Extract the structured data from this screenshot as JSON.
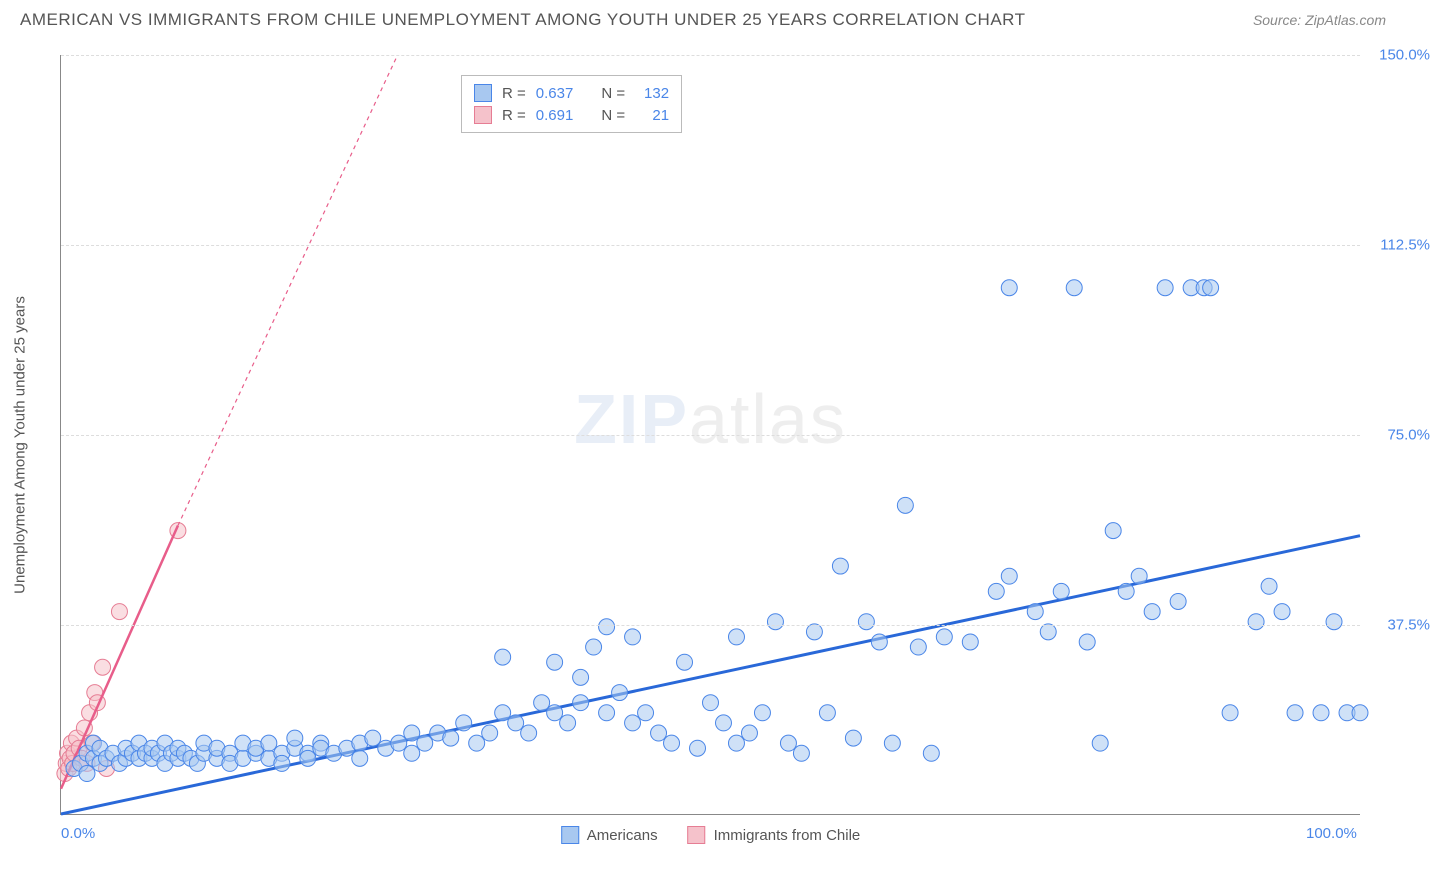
{
  "title": "AMERICAN VS IMMIGRANTS FROM CHILE UNEMPLOYMENT AMONG YOUTH UNDER 25 YEARS CORRELATION CHART",
  "source": "Source: ZipAtlas.com",
  "watermark_zip": "ZIP",
  "watermark_atlas": "atlas",
  "y_axis_label": "Unemployment Among Youth under 25 years",
  "chart": {
    "type": "scatter",
    "background_color": "#ffffff",
    "grid_color": "#dddddd",
    "axis_color": "#888888",
    "label_color": "#4a86e8",
    "label_fontsize": 15,
    "xlim": [
      0,
      100
    ],
    "ylim": [
      0,
      150
    ],
    "x_ticks": [
      {
        "val": 0,
        "label": "0.0%"
      },
      {
        "val": 100,
        "label": "100.0%"
      }
    ],
    "y_ticks": [
      {
        "val": 37.5,
        "label": "37.5%"
      },
      {
        "val": 75.0,
        "label": "75.0%"
      },
      {
        "val": 112.5,
        "label": "112.5%"
      },
      {
        "val": 150.0,
        "label": "150.0%"
      }
    ],
    "marker_radius": 8,
    "marker_opacity": 0.55,
    "series": [
      {
        "name": "Americans",
        "fill_color": "#a8c8f0",
        "stroke_color": "#4a86e8",
        "line_color": "#2968d8",
        "line_width": 3,
        "line_dash": "none",
        "R": "0.637",
        "N": "132",
        "regression": {
          "x1": 0,
          "y1": 0,
          "x2": 100,
          "y2": 55,
          "extend_x2": 100,
          "extend_y2": 55
        },
        "points": [
          [
            1,
            9
          ],
          [
            1.5,
            10
          ],
          [
            2,
            12
          ],
          [
            2,
            8
          ],
          [
            2.5,
            11
          ],
          [
            2.5,
            14
          ],
          [
            3,
            13
          ],
          [
            3,
            10
          ],
          [
            3.5,
            11
          ],
          [
            4,
            12
          ],
          [
            4.5,
            10
          ],
          [
            5,
            11
          ],
          [
            5,
            13
          ],
          [
            5.5,
            12
          ],
          [
            6,
            11
          ],
          [
            6,
            14
          ],
          [
            6.5,
            12
          ],
          [
            7,
            11
          ],
          [
            7,
            13
          ],
          [
            7.5,
            12
          ],
          [
            8,
            10
          ],
          [
            8,
            14
          ],
          [
            8.5,
            12
          ],
          [
            9,
            11
          ],
          [
            9,
            13
          ],
          [
            9.5,
            12
          ],
          [
            10,
            11
          ],
          [
            10.5,
            10
          ],
          [
            11,
            12
          ],
          [
            11,
            14
          ],
          [
            12,
            11
          ],
          [
            12,
            13
          ],
          [
            13,
            12
          ],
          [
            13,
            10
          ],
          [
            14,
            11
          ],
          [
            14,
            14
          ],
          [
            15,
            12
          ],
          [
            15,
            13
          ],
          [
            16,
            11
          ],
          [
            16,
            14
          ],
          [
            17,
            12
          ],
          [
            17,
            10
          ],
          [
            18,
            13
          ],
          [
            18,
            15
          ],
          [
            19,
            12
          ],
          [
            19,
            11
          ],
          [
            20,
            14
          ],
          [
            20,
            13
          ],
          [
            21,
            12
          ],
          [
            22,
            13
          ],
          [
            23,
            14
          ],
          [
            23,
            11
          ],
          [
            24,
            15
          ],
          [
            25,
            13
          ],
          [
            26,
            14
          ],
          [
            27,
            16
          ],
          [
            27,
            12
          ],
          [
            28,
            14
          ],
          [
            29,
            16
          ],
          [
            30,
            15
          ],
          [
            31,
            18
          ],
          [
            32,
            14
          ],
          [
            33,
            16
          ],
          [
            34,
            20
          ],
          [
            34,
            31
          ],
          [
            35,
            18
          ],
          [
            36,
            16
          ],
          [
            37,
            22
          ],
          [
            38,
            30
          ],
          [
            38,
            20
          ],
          [
            39,
            18
          ],
          [
            40,
            22
          ],
          [
            40,
            27
          ],
          [
            41,
            33
          ],
          [
            42,
            20
          ],
          [
            42,
            37
          ],
          [
            43,
            24
          ],
          [
            44,
            18
          ],
          [
            44,
            35
          ],
          [
            45,
            20
          ],
          [
            46,
            16
          ],
          [
            47,
            14
          ],
          [
            48,
            30
          ],
          [
            49,
            13
          ],
          [
            50,
            22
          ],
          [
            51,
            18
          ],
          [
            52,
            35
          ],
          [
            52,
            14
          ],
          [
            53,
            16
          ],
          [
            54,
            20
          ],
          [
            55,
            38
          ],
          [
            56,
            14
          ],
          [
            57,
            12
          ],
          [
            58,
            36
          ],
          [
            59,
            20
          ],
          [
            60,
            49
          ],
          [
            61,
            15
          ],
          [
            62,
            38
          ],
          [
            63,
            34
          ],
          [
            64,
            14
          ],
          [
            65,
            61
          ],
          [
            66,
            33
          ],
          [
            67,
            12
          ],
          [
            68,
            35
          ],
          [
            70,
            34
          ],
          [
            72,
            44
          ],
          [
            73,
            47
          ],
          [
            73,
            104
          ],
          [
            75,
            40
          ],
          [
            76,
            36
          ],
          [
            77,
            44
          ],
          [
            78,
            104
          ],
          [
            79,
            34
          ],
          [
            80,
            14
          ],
          [
            81,
            56
          ],
          [
            82,
            44
          ],
          [
            83,
            47
          ],
          [
            84,
            40
          ],
          [
            85,
            104
          ],
          [
            86,
            42
          ],
          [
            87,
            104
          ],
          [
            88,
            104
          ],
          [
            88.5,
            104
          ],
          [
            90,
            20
          ],
          [
            92,
            38
          ],
          [
            93,
            45
          ],
          [
            94,
            40
          ],
          [
            95,
            20
          ],
          [
            97,
            20
          ],
          [
            98,
            38
          ],
          [
            99,
            20
          ],
          [
            100,
            20
          ]
        ]
      },
      {
        "name": "Immigrants from Chile",
        "fill_color": "#f5c2cb",
        "stroke_color": "#e67d94",
        "line_color": "#e85d8a",
        "line_width": 2.5,
        "line_dash": "4,4",
        "R": "0.691",
        "N": "21",
        "regression": {
          "x1": 0,
          "y1": 5,
          "x2": 9,
          "y2": 57,
          "extend_x2": 35,
          "extend_y2": 200
        },
        "points": [
          [
            0.3,
            8
          ],
          [
            0.4,
            10
          ],
          [
            0.5,
            12
          ],
          [
            0.6,
            9
          ],
          [
            0.7,
            11
          ],
          [
            0.8,
            14
          ],
          [
            0.9,
            10
          ],
          [
            1.0,
            12
          ],
          [
            1.2,
            15
          ],
          [
            1.4,
            13
          ],
          [
            1.6,
            11
          ],
          [
            1.8,
            17
          ],
          [
            2.0,
            10
          ],
          [
            2.2,
            20
          ],
          [
            2.4,
            14
          ],
          [
            2.6,
            24
          ],
          [
            2.8,
            22
          ],
          [
            3.2,
            29
          ],
          [
            3.5,
            9
          ],
          [
            4.5,
            40
          ],
          [
            9,
            56
          ]
        ]
      }
    ],
    "bottom_legend": [
      {
        "label": "Americans",
        "fill": "#a8c8f0",
        "stroke": "#4a86e8"
      },
      {
        "label": "Immigrants from Chile",
        "fill": "#f5c2cb",
        "stroke": "#e67d94"
      }
    ],
    "stat_legend_labels": {
      "R": "R =",
      "N": "N ="
    }
  }
}
